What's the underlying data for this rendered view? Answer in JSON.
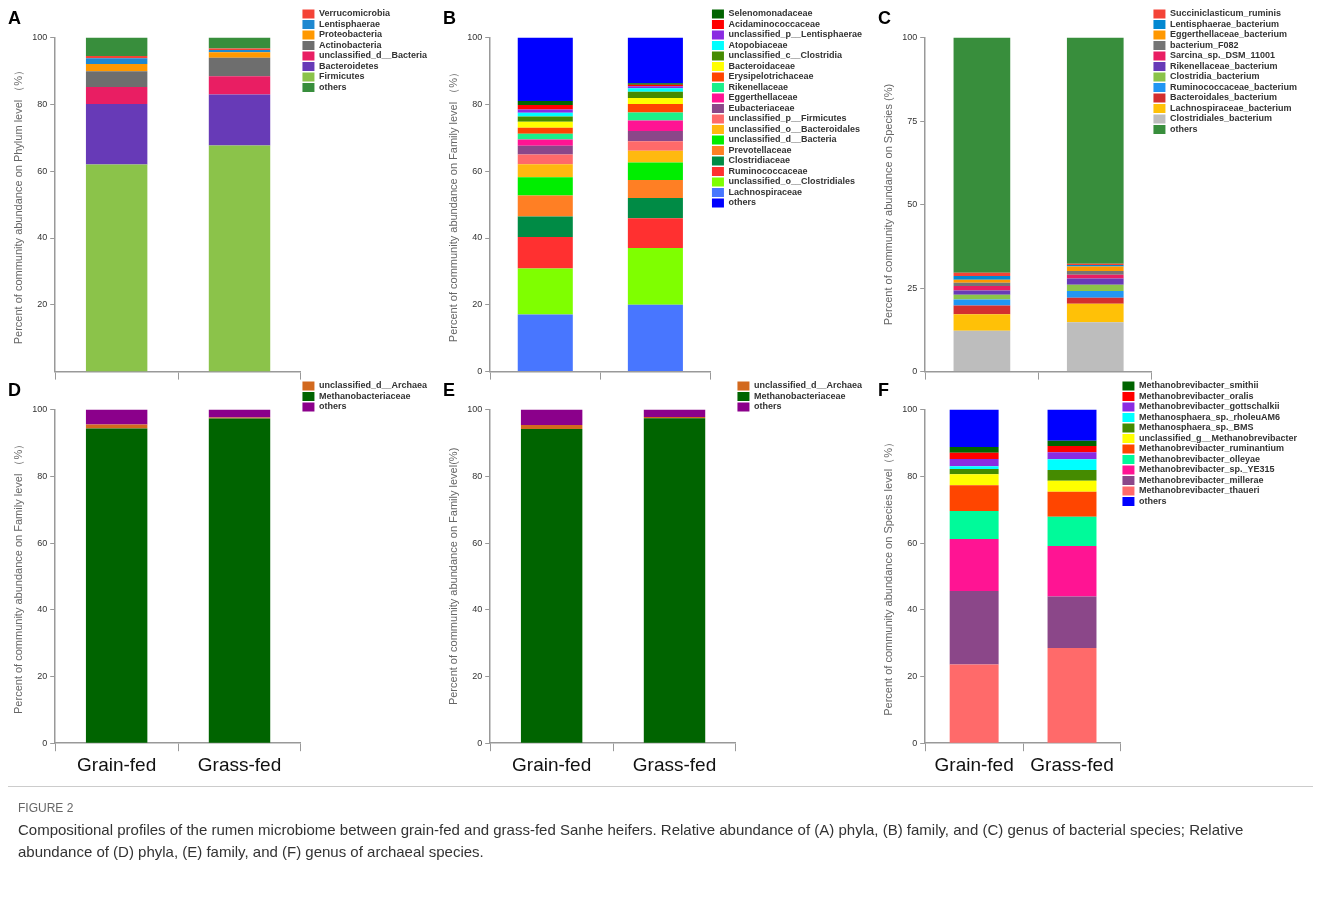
{
  "chart_data": [
    {
      "type": "bar",
      "title": "A",
      "ylabel": "Percent of community abundance on Phylum level （%）",
      "categories": [
        null,
        null
      ],
      "stacked": true,
      "ylim": [
        0,
        100
      ],
      "yticks": [
        20,
        40,
        60,
        80,
        100
      ],
      "legend": "top right",
      "tick_labels": "y",
      "series": [
        {
          "name": "Firmicutes",
          "color": "#8bc34a",
          "values": [
            62.0,
            67.7
          ]
        },
        {
          "name": "Bacteroidetes",
          "color": "#673ab7",
          "values": [
            18.1,
            15.3
          ]
        },
        {
          "name": "unclassified_d__Bacteria",
          "color": "#e91e63",
          "values": [
            5.1,
            5.4
          ]
        },
        {
          "name": "Actinobacteria",
          "color": "#6e6e6e",
          "values": [
            4.7,
            5.6
          ]
        },
        {
          "name": "Proteobacteria",
          "color": "#ff9800",
          "values": [
            2.2,
            1.6
          ]
        },
        {
          "name": "Lentisphaerae",
          "color": "#1e88d0",
          "values": [
            1.7,
            0.7
          ]
        },
        {
          "name": "Verrucomicrobia",
          "color": "#f44336",
          "values": [
            0.7,
            0.4
          ]
        },
        {
          "name": "others",
          "color": "#388e3c",
          "values": [
            5.5,
            3.3
          ]
        }
      ]
    },
    {
      "type": "bar",
      "title": "B",
      "ylabel": "Percent of community abundance on Family level （%）",
      "categories": [
        null,
        null
      ],
      "stacked": true,
      "ylim": [
        0,
        100
      ],
      "yticks": [
        0,
        20,
        40,
        60,
        80,
        100
      ],
      "legend": "top right",
      "tick_labels": "y",
      "series": [
        {
          "name": "Lachnospiraceae",
          "color": "#4876ff",
          "values": [
            17.1,
            20.0
          ]
        },
        {
          "name": "unclassified_o__Clostridiales",
          "color": "#7fff00",
          "values": [
            13.8,
            17.0
          ]
        },
        {
          "name": "Ruminococcaceae",
          "color": "#ff3030",
          "values": [
            9.4,
            8.9
          ]
        },
        {
          "name": "Clostridiaceae",
          "color": "#008b45",
          "values": [
            6.1,
            6.1
          ]
        },
        {
          "name": "Prevotellaceae",
          "color": "#ff7f24",
          "values": [
            6.3,
            5.4
          ]
        },
        {
          "name": "unclassified_d__Bacteria",
          "color": "#00ee00",
          "values": [
            5.5,
            5.2
          ]
        },
        {
          "name": "unclassified_o__Bacteroidales",
          "color": "#ffb90f",
          "values": [
            3.9,
            3.5
          ]
        },
        {
          "name": "unclassified_p__Firmicutes",
          "color": "#ff6a6a",
          "values": [
            2.9,
            2.9
          ]
        },
        {
          "name": "Eubacteriaceae",
          "color": "#8b4789",
          "values": [
            2.6,
            3.0
          ]
        },
        {
          "name": "Eggerthellaceae",
          "color": "#ff1493",
          "values": [
            1.9,
            3.2
          ]
        },
        {
          "name": "Rikenellaceae",
          "color": "#1bf08a",
          "values": [
            1.7,
            2.4
          ]
        },
        {
          "name": "Erysipelotrichaceae",
          "color": "#ff4500",
          "values": [
            1.8,
            2.5
          ]
        },
        {
          "name": "Bacteroidaceae",
          "color": "#ffff00",
          "values": [
            1.8,
            1.8
          ]
        },
        {
          "name": "unclassified_c__Clostridia",
          "color": "#458b00",
          "values": [
            1.6,
            1.9
          ]
        },
        {
          "name": "Atopobiaceae",
          "color": "#00ffff",
          "values": [
            1.1,
            1.0
          ]
        },
        {
          "name": "unclassified_p__Lentisphaerae",
          "color": "#8a2be2",
          "values": [
            1.0,
            0.6
          ]
        },
        {
          "name": "Acidaminococcaceae",
          "color": "#ff0000",
          "values": [
            1.3,
            0.5
          ]
        },
        {
          "name": "Selenomonadaceae",
          "color": "#006400",
          "values": [
            1.2,
            0.4
          ]
        },
        {
          "name": "others",
          "color": "#0000ff",
          "values": [
            19.0,
            13.7
          ]
        }
      ]
    },
    {
      "type": "bar",
      "title": "C",
      "ylabel": "Percent of community abundance on Species (%)",
      "categories": [
        null,
        null
      ],
      "stacked": true,
      "ylim": [
        0,
        100
      ],
      "yticks": [
        0,
        25,
        50,
        75,
        100
      ],
      "legend": "top right",
      "tick_labels": "y",
      "series": [
        {
          "name": "Clostridiales_bacterium",
          "color": "#bdbdbd",
          "values": [
            12.2,
            14.8
          ]
        },
        {
          "name": "Lachnospiraceae_bacterium",
          "color": "#ffc107",
          "values": [
            5.0,
            5.5
          ]
        },
        {
          "name": "Bacteroidales_bacterium",
          "color": "#d32f2f",
          "values": [
            2.6,
            1.8
          ]
        },
        {
          "name": "Ruminococcaceae_bacterium",
          "color": "#2196f3",
          "values": [
            1.8,
            2.0
          ]
        },
        {
          "name": "Clostridia_bacterium",
          "color": "#8bc34a",
          "values": [
            1.4,
            1.9
          ]
        },
        {
          "name": "Rikenellaceae_bacterium",
          "color": "#673ab7",
          "values": [
            1.3,
            1.9
          ]
        },
        {
          "name": "Sarcina_sp._DSM_11001",
          "color": "#e91e63",
          "values": [
            1.3,
            1.1
          ]
        },
        {
          "name": "bacterium_F082",
          "color": "#757575",
          "values": [
            1.0,
            1.1
          ]
        },
        {
          "name": "Eggerthellaceae_bacterium",
          "color": "#ff9800",
          "values": [
            0.9,
            1.4
          ]
        },
        {
          "name": "Lentisphaerae_bacterium",
          "color": "#0288d1",
          "values": [
            1.1,
            0.4
          ]
        },
        {
          "name": "Succiniclasticum_ruminis",
          "color": "#f44336",
          "values": [
            1.0,
            0.4
          ]
        },
        {
          "name": "others",
          "color": "#388e3c",
          "values": [
            70.4,
            67.7
          ]
        }
      ]
    },
    {
      "type": "bar",
      "title": "D",
      "ylabel": "Percent of community abundance on Family level （%）",
      "categories": [
        "Grain-fed",
        "Grass-fed"
      ],
      "stacked": true,
      "ylim": [
        0,
        100
      ],
      "yticks": [
        0,
        20,
        40,
        60,
        80,
        100
      ],
      "legend": "top right",
      "series": [
        {
          "name": "Methanobacteriaceae",
          "color": "#006400",
          "values": [
            94.3,
            97.3
          ]
        },
        {
          "name": "unclassified_d__Archaea",
          "color": "#d2691e",
          "values": [
            1.2,
            0.3
          ]
        },
        {
          "name": "others",
          "color": "#8b008b",
          "values": [
            4.5,
            2.4
          ]
        }
      ]
    },
    {
      "type": "bar",
      "title": "E",
      "ylabel": "Percent of community abundance on Family level(%)",
      "categories": [
        "Grain-fed",
        "Grass-fed"
      ],
      "stacked": true,
      "ylim": [
        0,
        100
      ],
      "yticks": [
        0,
        20,
        40,
        60,
        80,
        100
      ],
      "legend": "top right",
      "series": [
        {
          "name": "Methanobacteriaceae",
          "color": "#006400",
          "values": [
            94.2,
            97.4
          ]
        },
        {
          "name": "unclassified_d__Archaea",
          "color": "#d2691e",
          "values": [
            1.2,
            0.4
          ]
        },
        {
          "name": "others",
          "color": "#8b008b",
          "values": [
            4.6,
            2.2
          ]
        }
      ]
    },
    {
      "type": "bar",
      "title": "F",
      "ylabel": "Percent of community abundance on Species level（%）",
      "categories": [
        "Grain-fed",
        "Grass-fed"
      ],
      "stacked": true,
      "ylim": [
        0,
        100
      ],
      "yticks": [
        0,
        20,
        40,
        60,
        80,
        100
      ],
      "legend": "top right",
      "series": [
        {
          "name": "Methanobrevibacter_thaueri",
          "color": "#ff6a6a",
          "values": [
            23.6,
            28.5
          ]
        },
        {
          "name": "Methanobrevibacter_millerae",
          "color": "#8b4789",
          "values": [
            22.0,
            15.5
          ]
        },
        {
          "name": "Methanobrevibacter_sp._YE315",
          "color": "#ff1493",
          "values": [
            15.6,
            15.1
          ]
        },
        {
          "name": "Methanobrevibacter_olleyae",
          "color": "#00fa9a",
          "values": [
            8.4,
            8.8
          ]
        },
        {
          "name": "Methanobrevibacter_ruminantium",
          "color": "#ff4500",
          "values": [
            7.7,
            7.5
          ]
        },
        {
          "name": "unclassified_g__Methanobrevibacter",
          "color": "#ffff00",
          "values": [
            3.3,
            3.3
          ]
        },
        {
          "name": "Methanosphaera_sp._BMS",
          "color": "#458b00",
          "values": [
            1.6,
            3.2
          ]
        },
        {
          "name": "Methanosphaera_sp._rholeuAM6",
          "color": "#00ffff",
          "values": [
            0.8,
            3.2
          ]
        },
        {
          "name": "Methanobrevibacter_gottschalkii",
          "color": "#8a2be2",
          "values": [
            2.2,
            2.1
          ]
        },
        {
          "name": "Methanobrevibacter_oralis",
          "color": "#ff0000",
          "values": [
            1.9,
            1.9
          ]
        },
        {
          "name": "Methanobrevibacter_smithii",
          "color": "#006400",
          "values": [
            1.7,
            1.6
          ]
        },
        {
          "name": "others",
          "color": "#0000ff",
          "values": [
            11.2,
            9.3
          ]
        }
      ]
    },
    {
      "type": "other",
      "title": "FIGURE 2",
      "annotations": [
        "Compositional profiles of the rumen microbiome between grain-fed and grass-fed Sanhe heifers. Relative abundance of (A) phyla, (B) family, and (C) genus of bacterial species; Relative abundance of (D) phyla, (E) family, and (F) genus of archaeal species."
      ]
    }
  ]
}
